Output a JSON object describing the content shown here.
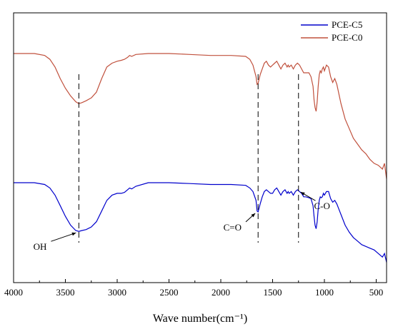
{
  "chart_data": {
    "type": "line",
    "title": "",
    "xlabel": "Wave number(cm⁻¹)",
    "ylabel": "",
    "xlim": [
      4000,
      400
    ],
    "x_reversed": true,
    "y_ticks_shown": false,
    "x_ticks": [
      4000,
      3500,
      3000,
      2500,
      2000,
      1500,
      1000,
      500
    ],
    "legend_position": "top-right",
    "series": [
      {
        "name": "PCE-C5",
        "color": "#0000cc",
        "x": [
          4000,
          3800,
          3700,
          3650,
          3600,
          3550,
          3500,
          3450,
          3400,
          3370,
          3340,
          3300,
          3250,
          3200,
          3150,
          3100,
          3050,
          3000,
          2960,
          2930,
          2900,
          2880,
          2860,
          2820,
          2700,
          2500,
          2300,
          2100,
          1900,
          1760,
          1720,
          1690,
          1660,
          1650,
          1640,
          1620,
          1600,
          1580,
          1560,
          1540,
          1520,
          1500,
          1480,
          1460,
          1450,
          1440,
          1420,
          1400,
          1380,
          1360,
          1350,
          1340,
          1320,
          1300,
          1280,
          1260,
          1240,
          1220,
          1200,
          1180,
          1150,
          1130,
          1110,
          1100,
          1090,
          1080,
          1070,
          1060,
          1050,
          1040,
          1030,
          1020,
          1010,
          1000,
          980,
          960,
          940,
          920,
          900,
          880,
          860,
          840,
          800,
          760,
          720,
          680,
          640,
          600,
          560,
          520,
          480,
          440,
          420,
          400
        ],
        "values": [
          0.0,
          0.0,
          -0.01,
          -0.03,
          -0.07,
          -0.13,
          -0.19,
          -0.24,
          -0.27,
          -0.275,
          -0.27,
          -0.265,
          -0.25,
          -0.22,
          -0.16,
          -0.1,
          -0.07,
          -0.06,
          -0.06,
          -0.055,
          -0.04,
          -0.03,
          -0.035,
          -0.02,
          0.0,
          0.0,
          -0.005,
          -0.01,
          -0.01,
          -0.015,
          -0.03,
          -0.05,
          -0.1,
          -0.16,
          -0.165,
          -0.12,
          -0.08,
          -0.05,
          -0.04,
          -0.05,
          -0.06,
          -0.06,
          -0.04,
          -0.03,
          -0.04,
          -0.05,
          -0.07,
          -0.05,
          -0.04,
          -0.06,
          -0.05,
          -0.06,
          -0.05,
          -0.07,
          -0.05,
          -0.04,
          -0.05,
          -0.06,
          -0.08,
          -0.08,
          -0.085,
          -0.09,
          -0.13,
          -0.19,
          -0.24,
          -0.26,
          -0.22,
          -0.15,
          -0.1,
          -0.08,
          -0.085,
          -0.08,
          -0.06,
          -0.07,
          -0.05,
          -0.05,
          -0.09,
          -0.11,
          -0.1,
          -0.12,
          -0.15,
          -0.18,
          -0.24,
          -0.28,
          -0.31,
          -0.33,
          -0.35,
          -0.36,
          -0.37,
          -0.38,
          -0.4,
          -0.42,
          -0.4,
          -0.45
        ]
      },
      {
        "name": "PCE-C0",
        "color": "#c0503c",
        "x": [
          4000,
          3800,
          3700,
          3650,
          3600,
          3550,
          3500,
          3450,
          3400,
          3370,
          3340,
          3300,
          3250,
          3200,
          3150,
          3100,
          3050,
          3000,
          2960,
          2930,
          2900,
          2880,
          2860,
          2820,
          2700,
          2500,
          2300,
          2100,
          1900,
          1760,
          1720,
          1690,
          1660,
          1650,
          1640,
          1620,
          1600,
          1580,
          1560,
          1540,
          1520,
          1500,
          1480,
          1460,
          1450,
          1440,
          1420,
          1400,
          1380,
          1360,
          1350,
          1340,
          1320,
          1300,
          1280,
          1260,
          1240,
          1220,
          1200,
          1180,
          1150,
          1130,
          1110,
          1100,
          1090,
          1080,
          1070,
          1060,
          1050,
          1040,
          1030,
          1020,
          1010,
          1000,
          980,
          960,
          940,
          920,
          900,
          880,
          860,
          840,
          800,
          760,
          720,
          680,
          640,
          600,
          560,
          520,
          480,
          440,
          420,
          400
        ],
        "values": [
          0.0,
          0.0,
          -0.01,
          -0.03,
          -0.07,
          -0.13,
          -0.18,
          -0.22,
          -0.25,
          -0.26,
          -0.255,
          -0.245,
          -0.23,
          -0.2,
          -0.13,
          -0.07,
          -0.05,
          -0.04,
          -0.035,
          -0.03,
          -0.02,
          -0.01,
          -0.015,
          -0.005,
          0.0,
          0.0,
          -0.005,
          -0.01,
          -0.01,
          -0.015,
          -0.03,
          -0.06,
          -0.12,
          -0.16,
          -0.155,
          -0.11,
          -0.08,
          -0.05,
          -0.04,
          -0.06,
          -0.07,
          -0.06,
          -0.05,
          -0.04,
          -0.05,
          -0.06,
          -0.08,
          -0.06,
          -0.05,
          -0.07,
          -0.06,
          -0.07,
          -0.06,
          -0.08,
          -0.06,
          -0.05,
          -0.06,
          -0.08,
          -0.1,
          -0.1,
          -0.1,
          -0.12,
          -0.17,
          -0.24,
          -0.28,
          -0.3,
          -0.25,
          -0.17,
          -0.11,
          -0.09,
          -0.1,
          -0.08,
          -0.07,
          -0.09,
          -0.06,
          -0.07,
          -0.12,
          -0.15,
          -0.13,
          -0.16,
          -0.21,
          -0.26,
          -0.34,
          -0.39,
          -0.44,
          -0.47,
          -0.5,
          -0.52,
          -0.55,
          -0.57,
          -0.58,
          -0.6,
          -0.57,
          -0.65
        ]
      }
    ],
    "markers": [
      {
        "x": 3370,
        "label": "OH",
        "label_wavenumber": 3680,
        "label_position": "lower-left"
      },
      {
        "x": 1640,
        "label": "C=O",
        "label_wavenumber": 1800,
        "label_position": "lower-left"
      },
      {
        "x": 1250,
        "label": "C-O",
        "label_wavenumber": 1100,
        "label_position": "lower-right"
      }
    ]
  }
}
